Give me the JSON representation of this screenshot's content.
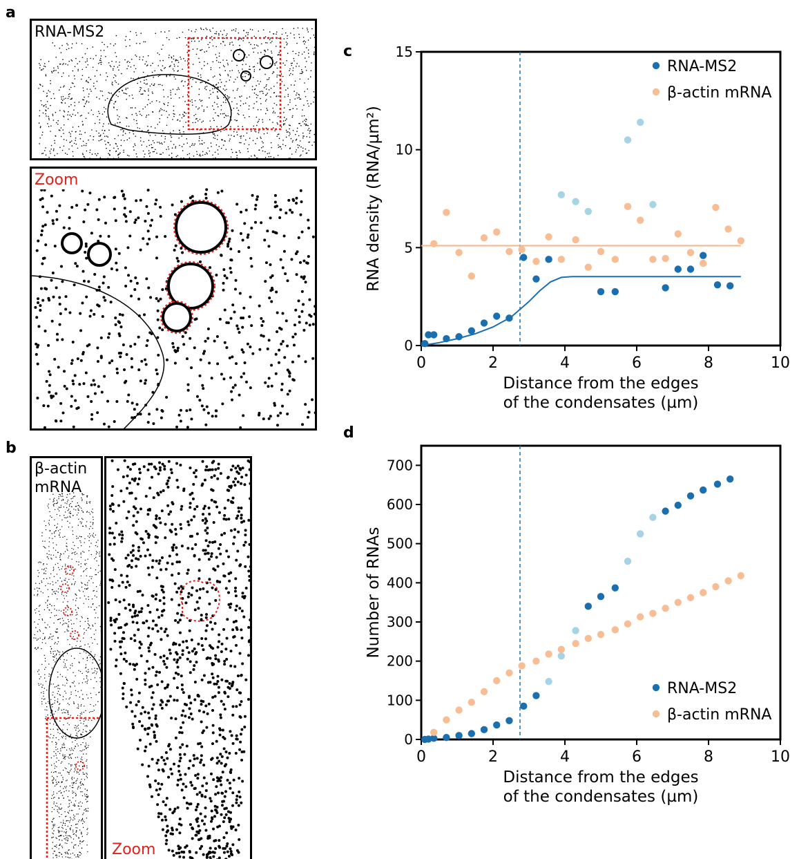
{
  "panel_labels": {
    "a": "a",
    "b": "b",
    "c": "c",
    "d": "d"
  },
  "panel_a": {
    "title": "RNA-MS2",
    "zoom_label": "Zoom"
  },
  "panel_b": {
    "title_line1": "β-actin",
    "title_line2": "mRNA",
    "zoom_label": "Zoom"
  },
  "colors": {
    "rna_ms2": "#1b6fae",
    "rna_ms2_light": "#a6d4e6",
    "beta_actin": "#f7be96",
    "beta_actin_fit": "#f5b585",
    "highlight_box": "#e0201b"
  },
  "chart_data": [
    {
      "id": "c",
      "type": "scatter",
      "xlabel": "Distance from the edges of the condensates (µm)",
      "xlabel_line1": "Distance from the edges",
      "xlabel_line2": "of the condensates (µm)",
      "ylabel": "RNA density (RNA/µm²)",
      "xlim": [
        0,
        10
      ],
      "ylim": [
        0,
        15
      ],
      "xticks": [
        "0",
        "2",
        "4",
        "6",
        "8",
        "10"
      ],
      "yticks": [
        "0",
        "5",
        "10",
        "15"
      ],
      "xtick_values": [
        0,
        2,
        4,
        6,
        8,
        10
      ],
      "ytick_values": [
        0,
        5,
        10,
        15
      ],
      "vline_x": 2.75,
      "legend_position": "top-right",
      "series": [
        {
          "name": "RNA-MS2",
          "color": "#1b6fae",
          "x": [
            0.1,
            0.2,
            0.35,
            0.7,
            1.05,
            1.4,
            1.75,
            2.1,
            2.45,
            2.85,
            3.2,
            3.55,
            5.0,
            5.4,
            6.8,
            7.15,
            7.5,
            7.85,
            8.25,
            8.6
          ],
          "y": [
            0.1,
            0.55,
            0.55,
            0.35,
            0.45,
            0.75,
            1.15,
            1.5,
            1.4,
            4.5,
            3.4,
            4.4,
            2.75,
            2.75,
            2.95,
            3.9,
            3.9,
            4.6,
            3.1,
            3.05
          ]
        },
        {
          "name": "RNA-MS2 (light)",
          "color": "#a6d4e6",
          "x": [
            3.9,
            4.3,
            4.65,
            5.75,
            6.1,
            6.45
          ],
          "y": [
            7.7,
            7.35,
            6.85,
            10.5,
            11.4,
            7.2
          ]
        },
        {
          "name": "β-actin mRNA",
          "color": "#f7be96",
          "x": [
            0.35,
            0.7,
            1.05,
            1.4,
            1.75,
            2.1,
            2.45,
            2.8,
            3.2,
            3.55,
            3.9,
            4.3,
            4.65,
            5.0,
            5.4,
            5.75,
            6.1,
            6.45,
            6.8,
            7.15,
            7.5,
            7.85,
            8.2,
            8.55,
            8.9
          ],
          "y": [
            5.2,
            6.8,
            4.75,
            3.55,
            5.5,
            5.8,
            4.8,
            4.9,
            4.3,
            5.55,
            4.4,
            5.4,
            4.0,
            4.8,
            4.4,
            7.1,
            6.4,
            4.4,
            4.45,
            5.7,
            4.75,
            4.2,
            7.05,
            5.95,
            5.35
          ]
        }
      ],
      "fits": [
        {
          "name": "RNA-MS2 fit",
          "color": "#1b6fae",
          "x": [
            0.0,
            0.5,
            1.0,
            1.5,
            2.0,
            2.5,
            3.0,
            3.3,
            3.6,
            3.9,
            4.2,
            5.0,
            6.0,
            7.0,
            8.0,
            8.9
          ],
          "y": [
            0.0,
            0.15,
            0.35,
            0.6,
            0.95,
            1.45,
            2.25,
            2.8,
            3.25,
            3.48,
            3.52,
            3.52,
            3.52,
            3.52,
            3.52,
            3.52
          ]
        },
        {
          "name": "β-actin mRNA fit",
          "color": "#f5b585",
          "x": [
            0.0,
            8.9
          ],
          "y": [
            5.1,
            5.1
          ]
        }
      ]
    },
    {
      "id": "d",
      "type": "scatter",
      "xlabel": "Distance from the edges of the condensates (µm)",
      "xlabel_line1": "Distance from the edges",
      "xlabel_line2": "of the condensates (µm)",
      "ylabel": "Number of RNAs",
      "xlim": [
        0,
        10
      ],
      "ylim": [
        0,
        750
      ],
      "xticks": [
        "0",
        "2",
        "4",
        "6",
        "8",
        "10"
      ],
      "yticks": [
        "0",
        "100",
        "200",
        "300",
        "400",
        "500",
        "600",
        "700"
      ],
      "xtick_values": [
        0,
        2,
        4,
        6,
        8,
        10
      ],
      "ytick_values": [
        0,
        100,
        200,
        300,
        400,
        500,
        600,
        700
      ],
      "vline_x": 2.75,
      "legend_position": "bottom-right",
      "series": [
        {
          "name": "RNA-MS2",
          "color": "#1b6fae",
          "x": [
            0.1,
            0.2,
            0.35,
            0.7,
            1.05,
            1.4,
            1.75,
            2.1,
            2.45,
            2.85,
            3.2,
            4.65,
            5.0,
            5.4,
            6.8,
            7.15,
            7.5,
            7.85,
            8.25,
            8.6
          ],
          "y": [
            0,
            1,
            3,
            5,
            10,
            15,
            25,
            37,
            48,
            85,
            112,
            340,
            365,
            387,
            583,
            598,
            622,
            637,
            652,
            665
          ]
        },
        {
          "name": "RNA-MS2 (light)",
          "color": "#a6d4e6",
          "x": [
            3.55,
            3.9,
            4.3,
            5.75,
            6.1,
            6.45
          ],
          "y": [
            148,
            213,
            278,
            455,
            525,
            567
          ]
        },
        {
          "name": "β-actin mRNA",
          "color": "#f7be96",
          "x": [
            0.35,
            0.7,
            1.05,
            1.4,
            1.75,
            2.1,
            2.45,
            2.8,
            3.2,
            3.55,
            3.9,
            4.3,
            4.65,
            5.0,
            5.4,
            5.75,
            6.1,
            6.45,
            6.8,
            7.15,
            7.5,
            7.85,
            8.2,
            8.55,
            8.9
          ],
          "y": [
            18,
            50,
            75,
            95,
            122,
            150,
            170,
            188,
            200,
            218,
            230,
            245,
            258,
            268,
            280,
            295,
            313,
            322,
            335,
            350,
            362,
            375,
            390,
            405,
            418
          ]
        }
      ]
    }
  ]
}
